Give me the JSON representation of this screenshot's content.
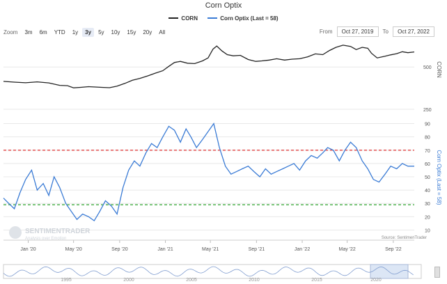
{
  "title": "Corn Optix",
  "legend": [
    {
      "label": "CORN",
      "color": "#222222"
    },
    {
      "label": "Corn Optix (Last = 58)",
      "color": "#3a7bd5"
    }
  ],
  "zoom": {
    "label": "Zoom",
    "buttons": [
      "3m",
      "6m",
      "YTD",
      "1y",
      "3y",
      "5y",
      "10y",
      "15y",
      "20y",
      "All"
    ],
    "active": "3y"
  },
  "range": {
    "from_label": "From",
    "from": "Oct 27, 2019",
    "to_label": "To",
    "to": "Oct 27, 2022"
  },
  "source": "Source: SentimenTrader",
  "watermark": {
    "name": "SENTIMENTRADER",
    "tagline": "Analysis over Emotion"
  },
  "colors": {
    "corn": "#222222",
    "optix": "#3a7bd5",
    "upper": "#e03030",
    "lower": "#2aa02a",
    "grid": "#e8e8e8"
  },
  "chart_data": [
    {
      "type": "line",
      "name": "CORN",
      "axis_label": "CORN",
      "log_scale": true,
      "y_ticks": [
        500,
        250
      ],
      "x_ticks": [
        "Jan '20",
        "May '20",
        "Sep '20",
        "Jan '21",
        "May '21",
        "Sep '21",
        "Jan '22",
        "May '22",
        "Sep '22"
      ],
      "x": [
        "2019-10-27",
        "2019-11-25",
        "2019-12-25",
        "2020-01-25",
        "2020-02-25",
        "2020-03-25",
        "2020-04-15",
        "2020-05-01",
        "2020-05-20",
        "2020-06-10",
        "2020-06-28",
        "2020-07-15",
        "2020-08-05",
        "2020-08-25",
        "2020-09-15",
        "2020-10-05",
        "2020-10-25",
        "2020-11-15",
        "2020-12-05",
        "2020-12-25",
        "2021-01-10",
        "2021-01-25",
        "2021-02-10",
        "2021-03-01",
        "2021-03-20",
        "2021-04-10",
        "2021-04-25",
        "2021-05-08",
        "2021-05-18",
        "2021-06-01",
        "2021-06-15",
        "2021-07-01",
        "2021-07-20",
        "2021-08-10",
        "2021-08-30",
        "2021-09-15",
        "2021-10-05",
        "2021-10-25",
        "2021-11-15",
        "2021-12-05",
        "2021-12-25",
        "2022-01-15",
        "2022-02-05",
        "2022-02-25",
        "2022-03-15",
        "2022-04-01",
        "2022-04-20",
        "2022-05-10",
        "2022-05-25",
        "2022-06-10",
        "2022-06-25",
        "2022-07-05",
        "2022-07-20",
        "2022-08-10",
        "2022-08-25",
        "2022-09-10",
        "2022-09-25",
        "2022-10-10",
        "2022-10-27"
      ],
      "y": [
        395,
        390,
        386,
        392,
        385,
        370,
        368,
        355,
        358,
        362,
        360,
        358,
        356,
        365,
        382,
        402,
        415,
        432,
        452,
        470,
        505,
        538,
        548,
        532,
        528,
        552,
        580,
        670,
        705,
        650,
        612,
        600,
        605,
        565,
        548,
        552,
        560,
        572,
        560,
        568,
        572,
        590,
        620,
        612,
        655,
        690,
        715,
        700,
        665,
        690,
        680,
        625,
        580,
        596,
        610,
        622,
        642,
        632,
        640
      ]
    },
    {
      "type": "line",
      "name": "Corn Optix (Last = 58)",
      "axis_label": "Corn Optix (Last = 58)",
      "y_ticks": [
        10,
        20,
        30,
        40,
        50,
        60,
        70,
        80,
        90
      ],
      "ylim": [
        5,
        95
      ],
      "thresholds": {
        "upper": 70,
        "lower": 29
      },
      "x_ticks": [
        "Jan '20",
        "May '20",
        "Sep '20",
        "Jan '21",
        "May '21",
        "Sep '21",
        "Jan '22",
        "May '22",
        "Sep '22"
      ],
      "x": [
        "2019-10-27",
        "2019-11-10",
        "2019-11-25",
        "2019-12-10",
        "2019-12-25",
        "2020-01-10",
        "2020-01-25",
        "2020-02-10",
        "2020-02-25",
        "2020-03-10",
        "2020-03-25",
        "2020-04-10",
        "2020-04-25",
        "2020-05-10",
        "2020-05-25",
        "2020-06-10",
        "2020-06-25",
        "2020-07-10",
        "2020-07-25",
        "2020-08-10",
        "2020-08-25",
        "2020-09-10",
        "2020-09-25",
        "2020-10-10",
        "2020-10-25",
        "2020-11-10",
        "2020-11-25",
        "2020-12-10",
        "2020-12-25",
        "2021-01-10",
        "2021-01-25",
        "2021-02-10",
        "2021-02-25",
        "2021-03-10",
        "2021-03-25",
        "2021-04-10",
        "2021-04-25",
        "2021-05-10",
        "2021-05-25",
        "2021-06-10",
        "2021-06-25",
        "2021-07-10",
        "2021-07-25",
        "2021-08-10",
        "2021-08-25",
        "2021-09-10",
        "2021-09-25",
        "2021-10-10",
        "2021-10-25",
        "2021-11-10",
        "2021-11-25",
        "2021-12-10",
        "2021-12-25",
        "2022-01-10",
        "2022-01-25",
        "2022-02-10",
        "2022-02-25",
        "2022-03-10",
        "2022-03-25",
        "2022-04-10",
        "2022-04-25",
        "2022-05-10",
        "2022-05-25",
        "2022-06-10",
        "2022-06-25",
        "2022-07-10",
        "2022-07-25",
        "2022-08-10",
        "2022-08-25",
        "2022-09-10",
        "2022-09-25",
        "2022-10-10",
        "2022-10-27"
      ],
      "y": [
        34,
        30,
        26,
        38,
        48,
        55,
        40,
        45,
        36,
        50,
        42,
        30,
        24,
        18,
        22,
        20,
        17,
        24,
        32,
        28,
        22,
        42,
        55,
        62,
        58,
        68,
        75,
        72,
        80,
        88,
        85,
        76,
        86,
        80,
        72,
        78,
        84,
        90,
        72,
        58,
        52,
        54,
        56,
        58,
        54,
        50,
        56,
        52,
        54,
        56,
        58,
        60,
        55,
        62,
        66,
        64,
        68,
        72,
        70,
        62,
        70,
        76,
        72,
        62,
        56,
        48,
        46,
        52,
        58,
        56,
        60,
        58,
        58
      ]
    }
  ],
  "navigator": {
    "labels": [
      "1995",
      "2000",
      "2005",
      "2010",
      "2015",
      "2020"
    ]
  }
}
